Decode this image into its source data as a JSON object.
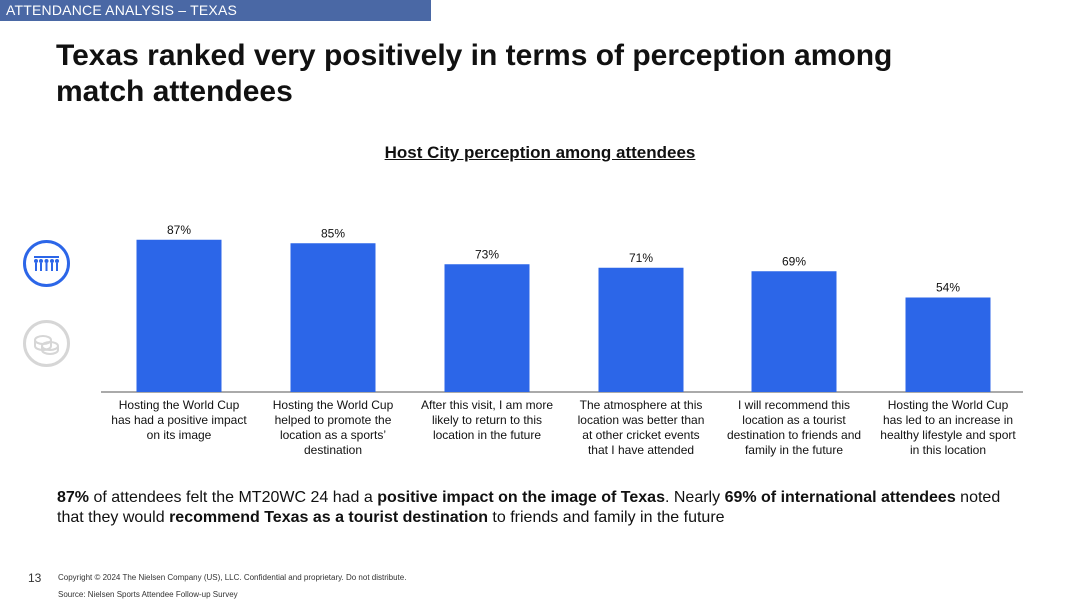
{
  "header": {
    "section_tag": "ATTENDANCE ANALYSIS – TEXAS",
    "headline": "Texas ranked very positively in terms of perception among match attendees"
  },
  "side_icons": [
    {
      "name": "attendees-icon",
      "active": true
    },
    {
      "name": "coins-icon",
      "active": false
    }
  ],
  "colors": {
    "bar": "#2c66e8",
    "tag_bg": "#4a68a5",
    "axis": "#555555"
  },
  "chart_data": {
    "type": "bar",
    "title": "Host City perception among attendees",
    "categories": [
      "Hosting the World Cup has had a positive impact on its image",
      "Hosting the World Cup helped to promote the location as a sports’ destination",
      "After this visit, I am more likely to return to this location in the future",
      "The atmosphere at this location was better than at other cricket events that I have attended",
      "I will recommend this location as a tourist destination to friends and family in the future",
      "Hosting the World Cup has led to an increase in healthy lifestyle and sport in this location"
    ],
    "values": [
      87,
      85,
      73,
      71,
      69,
      54
    ],
    "value_labels": [
      "87%",
      "85%",
      "73%",
      "71%",
      "69%",
      "54%"
    ],
    "xlabel": "",
    "ylabel": "",
    "ylim": [
      0,
      100
    ],
    "grid": false
  },
  "summary": {
    "parts": [
      {
        "text": "87%",
        "bold": true
      },
      {
        "text": " of attendees felt the MT20WC 24 had a ",
        "bold": false
      },
      {
        "text": "positive impact on the image of Texas",
        "bold": true
      },
      {
        "text": ". Nearly ",
        "bold": false
      },
      {
        "text": "69% of international attendees",
        "bold": true
      },
      {
        "text": " noted that they would ",
        "bold": false
      },
      {
        "text": "recommend Texas as a tourist destination",
        "bold": true
      },
      {
        "text": " to friends and family in the future",
        "bold": false
      }
    ]
  },
  "footer": {
    "page_number": "13",
    "copyright": "Copyright © 2024 The Nielsen Company (US), LLC. Confidential and proprietary. Do not distribute.",
    "source": "Source: Nielsen Sports Attendee Follow-up Survey"
  }
}
